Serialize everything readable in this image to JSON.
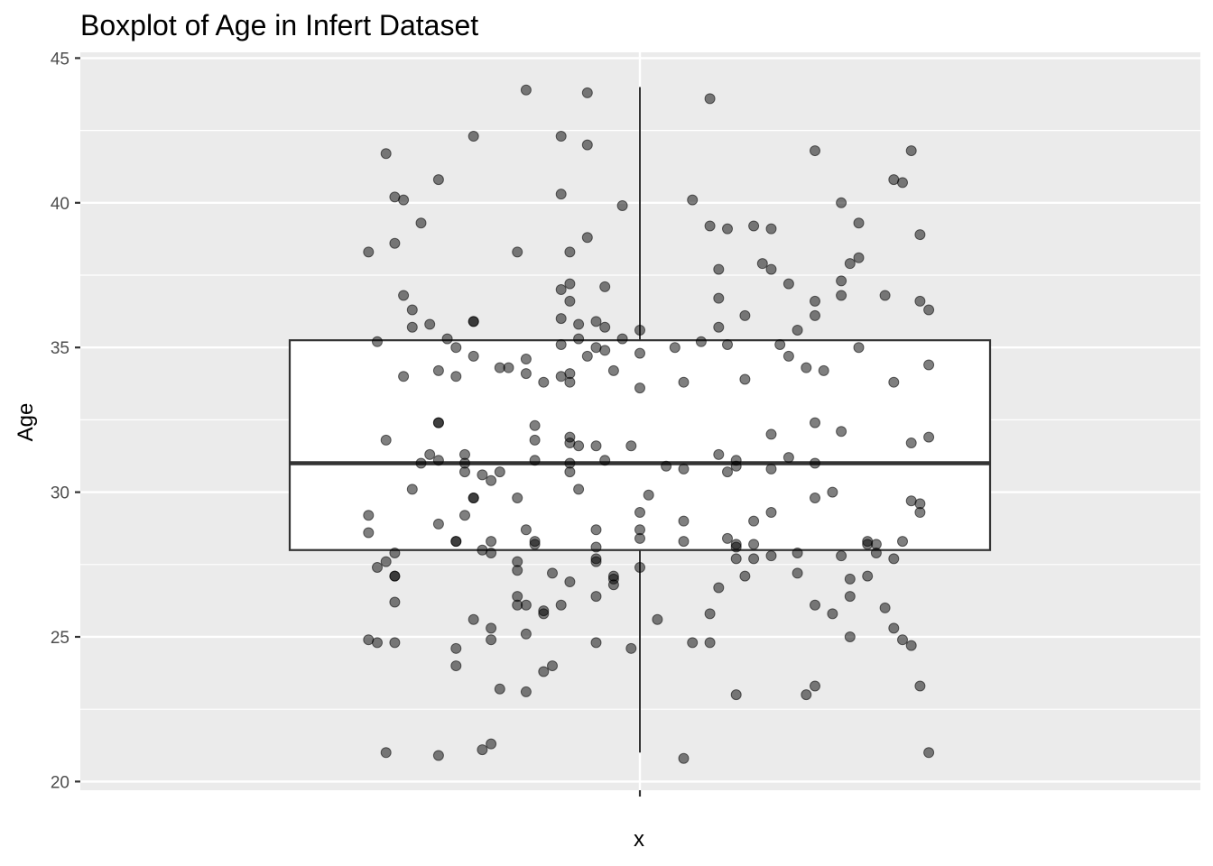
{
  "chart_data": {
    "type": "box",
    "title": "Boxplot of Age in Infert Dataset",
    "xlabel": "x",
    "ylabel": "Age",
    "categories": [
      ""
    ],
    "ylim": [
      19.7,
      45.2
    ],
    "yticks": [
      20,
      25,
      30,
      35,
      40,
      45
    ],
    "grid": true,
    "box": {
      "min": 21,
      "q1": 28,
      "median": 31,
      "q3": 35.25,
      "max": 44
    },
    "points": [
      {
        "x": -0.31,
        "y": 38.3
      },
      {
        "x": -0.29,
        "y": 41.7
      },
      {
        "x": -0.28,
        "y": 40.2
      },
      {
        "x": -0.27,
        "y": 40.1
      },
      {
        "x": -0.28,
        "y": 38.6
      },
      {
        "x": -0.25,
        "y": 39.3
      },
      {
        "x": -0.23,
        "y": 40.8
      },
      {
        "x": -0.19,
        "y": 42.3
      },
      {
        "x": -0.13,
        "y": 43.9
      },
      {
        "x": -0.09,
        "y": 42.3
      },
      {
        "x": -0.06,
        "y": 43.8
      },
      {
        "x": -0.06,
        "y": 42.0
      },
      {
        "x": -0.09,
        "y": 40.3
      },
      {
        "x": -0.14,
        "y": 38.3
      },
      {
        "x": -0.08,
        "y": 38.3
      },
      {
        "x": -0.06,
        "y": 38.8
      },
      {
        "x": -0.02,
        "y": 39.9
      },
      {
        "x": 0.08,
        "y": 43.6
      },
      {
        "x": 0.06,
        "y": 40.1
      },
      {
        "x": 0.08,
        "y": 39.2
      },
      {
        "x": 0.1,
        "y": 39.1
      },
      {
        "x": 0.13,
        "y": 39.2
      },
      {
        "x": 0.15,
        "y": 39.1
      },
      {
        "x": 0.2,
        "y": 41.8
      },
      {
        "x": 0.23,
        "y": 40.0
      },
      {
        "x": 0.25,
        "y": 39.3
      },
      {
        "x": 0.31,
        "y": 41.8
      },
      {
        "x": 0.29,
        "y": 40.8
      },
      {
        "x": 0.3,
        "y": 40.7
      },
      {
        "x": 0.32,
        "y": 38.9
      },
      {
        "x": 0.24,
        "y": 37.9
      },
      {
        "x": 0.25,
        "y": 38.1
      },
      {
        "x": 0.23,
        "y": 37.3
      },
      {
        "x": 0.14,
        "y": 37.9
      },
      {
        "x": 0.15,
        "y": 37.7
      },
      {
        "x": 0.17,
        "y": 37.2
      },
      {
        "x": 0.09,
        "y": 37.7
      },
      {
        "x": 0.09,
        "y": 36.7
      },
      {
        "x": 0.23,
        "y": 36.8
      },
      {
        "x": 0.2,
        "y": 36.6
      },
      {
        "x": 0.28,
        "y": 36.8
      },
      {
        "x": 0.32,
        "y": 36.6
      },
      {
        "x": 0.33,
        "y": 36.3
      },
      {
        "x": -0.04,
        "y": 37.1
      },
      {
        "x": -0.09,
        "y": 37.0
      },
      {
        "x": -0.08,
        "y": 37.2
      },
      {
        "x": -0.08,
        "y": 36.6
      },
      {
        "x": -0.27,
        "y": 36.8
      },
      {
        "x": -0.26,
        "y": 36.3
      },
      {
        "x": -0.26,
        "y": 35.7
      },
      {
        "x": -0.24,
        "y": 35.8
      },
      {
        "x": -0.19,
        "y": 35.9
      },
      {
        "x": -0.19,
        "y": 35.9
      },
      {
        "x": -0.09,
        "y": 36.0
      },
      {
        "x": -0.07,
        "y": 35.8
      },
      {
        "x": -0.05,
        "y": 35.9
      },
      {
        "x": -0.04,
        "y": 35.7
      },
      {
        "x": -0.02,
        "y": 35.3
      },
      {
        "x": 0.0,
        "y": 35.6
      },
      {
        "x": 0.09,
        "y": 35.7
      },
      {
        "x": 0.12,
        "y": 36.1
      },
      {
        "x": 0.18,
        "y": 35.6
      },
      {
        "x": 0.2,
        "y": 36.1
      },
      {
        "x": 0.07,
        "y": 35.2
      },
      {
        "x": 0.1,
        "y": 35.1
      },
      {
        "x": 0.16,
        "y": 35.1
      },
      {
        "x": -0.07,
        "y": 35.3
      },
      {
        "x": -0.09,
        "y": 35.1
      },
      {
        "x": -0.05,
        "y": 35.0
      },
      {
        "x": -0.06,
        "y": 34.7
      },
      {
        "x": -0.04,
        "y": 34.9
      },
      {
        "x": -0.22,
        "y": 35.3
      },
      {
        "x": -0.21,
        "y": 35.0
      },
      {
        "x": -0.19,
        "y": 34.7
      },
      {
        "x": -0.3,
        "y": 35.2
      },
      {
        "x": -0.13,
        "y": 34.6
      },
      {
        "x": -0.16,
        "y": 34.3
      },
      {
        "x": -0.15,
        "y": 34.3
      },
      {
        "x": -0.23,
        "y": 34.2
      },
      {
        "x": -0.27,
        "y": 34.0
      },
      {
        "x": -0.21,
        "y": 34.0
      },
      {
        "x": -0.13,
        "y": 34.1
      },
      {
        "x": -0.11,
        "y": 33.8
      },
      {
        "x": -0.09,
        "y": 34.0
      },
      {
        "x": -0.08,
        "y": 34.1
      },
      {
        "x": -0.08,
        "y": 33.8
      },
      {
        "x": -0.03,
        "y": 34.2
      },
      {
        "x": 0.0,
        "y": 34.8
      },
      {
        "x": 0.04,
        "y": 35.0
      },
      {
        "x": 0.0,
        "y": 33.6
      },
      {
        "x": 0.05,
        "y": 33.8
      },
      {
        "x": 0.12,
        "y": 33.9
      },
      {
        "x": 0.17,
        "y": 34.7
      },
      {
        "x": 0.19,
        "y": 34.3
      },
      {
        "x": 0.21,
        "y": 34.2
      },
      {
        "x": 0.25,
        "y": 35.0
      },
      {
        "x": 0.29,
        "y": 33.8
      },
      {
        "x": 0.33,
        "y": 34.4
      },
      {
        "x": -0.23,
        "y": 32.4
      },
      {
        "x": -0.23,
        "y": 32.4
      },
      {
        "x": -0.12,
        "y": 32.3
      },
      {
        "x": -0.08,
        "y": 31.9
      },
      {
        "x": -0.12,
        "y": 31.8
      },
      {
        "x": -0.08,
        "y": 31.7
      },
      {
        "x": -0.07,
        "y": 31.6
      },
      {
        "x": -0.05,
        "y": 31.6
      },
      {
        "x": -0.01,
        "y": 31.6
      },
      {
        "x": -0.29,
        "y": 31.8
      },
      {
        "x": -0.25,
        "y": 31.0
      },
      {
        "x": -0.24,
        "y": 31.3
      },
      {
        "x": -0.23,
        "y": 31.1
      },
      {
        "x": -0.2,
        "y": 31.3
      },
      {
        "x": -0.2,
        "y": 31.0
      },
      {
        "x": -0.2,
        "y": 30.7
      },
      {
        "x": -0.18,
        "y": 30.6
      },
      {
        "x": -0.17,
        "y": 30.4
      },
      {
        "x": -0.16,
        "y": 30.7
      },
      {
        "x": -0.12,
        "y": 31.1
      },
      {
        "x": -0.08,
        "y": 31.0
      },
      {
        "x": -0.08,
        "y": 30.7
      },
      {
        "x": -0.04,
        "y": 31.1
      },
      {
        "x": 0.03,
        "y": 30.9
      },
      {
        "x": 0.05,
        "y": 30.8
      },
      {
        "x": 0.09,
        "y": 31.3
      },
      {
        "x": 0.11,
        "y": 31.1
      },
      {
        "x": 0.11,
        "y": 30.9
      },
      {
        "x": 0.1,
        "y": 30.7
      },
      {
        "x": 0.15,
        "y": 32.0
      },
      {
        "x": 0.15,
        "y": 30.8
      },
      {
        "x": 0.17,
        "y": 31.2
      },
      {
        "x": 0.2,
        "y": 31.0
      },
      {
        "x": 0.2,
        "y": 32.4
      },
      {
        "x": 0.23,
        "y": 32.1
      },
      {
        "x": 0.31,
        "y": 31.7
      },
      {
        "x": 0.33,
        "y": 31.9
      },
      {
        "x": -0.26,
        "y": 30.1
      },
      {
        "x": -0.19,
        "y": 29.8
      },
      {
        "x": -0.19,
        "y": 29.8
      },
      {
        "x": -0.14,
        "y": 29.8
      },
      {
        "x": -0.07,
        "y": 30.1
      },
      {
        "x": 0.01,
        "y": 29.9
      },
      {
        "x": -0.31,
        "y": 29.2
      },
      {
        "x": -0.2,
        "y": 29.2
      },
      {
        "x": -0.23,
        "y": 28.9
      },
      {
        "x": -0.31,
        "y": 28.6
      },
      {
        "x": -0.21,
        "y": 28.3
      },
      {
        "x": -0.21,
        "y": 28.3
      },
      {
        "x": -0.17,
        "y": 28.3
      },
      {
        "x": -0.12,
        "y": 28.2
      },
      {
        "x": -0.12,
        "y": 28.3
      },
      {
        "x": -0.13,
        "y": 28.7
      },
      {
        "x": -0.05,
        "y": 28.7
      },
      {
        "x": 0.0,
        "y": 28.7
      },
      {
        "x": 0.0,
        "y": 28.4
      },
      {
        "x": 0.0,
        "y": 29.3
      },
      {
        "x": 0.05,
        "y": 29.0
      },
      {
        "x": 0.05,
        "y": 28.3
      },
      {
        "x": 0.1,
        "y": 28.4
      },
      {
        "x": 0.11,
        "y": 28.1
      },
      {
        "x": 0.11,
        "y": 28.2
      },
      {
        "x": 0.13,
        "y": 28.2
      },
      {
        "x": 0.13,
        "y": 29.0
      },
      {
        "x": 0.15,
        "y": 29.3
      },
      {
        "x": 0.2,
        "y": 29.8
      },
      {
        "x": 0.22,
        "y": 30.0
      },
      {
        "x": 0.26,
        "y": 28.3
      },
      {
        "x": 0.26,
        "y": 28.2
      },
      {
        "x": 0.27,
        "y": 28.2
      },
      {
        "x": 0.27,
        "y": 27.9
      },
      {
        "x": 0.3,
        "y": 28.3
      },
      {
        "x": 0.31,
        "y": 29.7
      },
      {
        "x": 0.32,
        "y": 29.6
      },
      {
        "x": 0.32,
        "y": 29.3
      },
      {
        "x": -0.28,
        "y": 27.9
      },
      {
        "x": -0.3,
        "y": 27.4
      },
      {
        "x": -0.29,
        "y": 27.6
      },
      {
        "x": -0.28,
        "y": 27.1
      },
      {
        "x": -0.28,
        "y": 27.1
      },
      {
        "x": -0.18,
        "y": 28.0
      },
      {
        "x": -0.17,
        "y": 27.9
      },
      {
        "x": -0.14,
        "y": 27.6
      },
      {
        "x": -0.14,
        "y": 27.3
      },
      {
        "x": -0.1,
        "y": 27.2
      },
      {
        "x": -0.08,
        "y": 26.9
      },
      {
        "x": -0.05,
        "y": 28.1
      },
      {
        "x": -0.05,
        "y": 27.7
      },
      {
        "x": -0.05,
        "y": 27.6
      },
      {
        "x": -0.03,
        "y": 27.1
      },
      {
        "x": -0.03,
        "y": 27.0
      },
      {
        "x": -0.03,
        "y": 26.8
      },
      {
        "x": 0.0,
        "y": 27.4
      },
      {
        "x": 0.11,
        "y": 27.7
      },
      {
        "x": 0.13,
        "y": 27.7
      },
      {
        "x": 0.15,
        "y": 27.8
      },
      {
        "x": 0.18,
        "y": 27.9
      },
      {
        "x": 0.18,
        "y": 27.2
      },
      {
        "x": 0.23,
        "y": 27.8
      },
      {
        "x": 0.24,
        "y": 27.0
      },
      {
        "x": 0.26,
        "y": 27.1
      },
      {
        "x": 0.29,
        "y": 27.7
      },
      {
        "x": 0.12,
        "y": 27.1
      },
      {
        "x": 0.09,
        "y": 26.7
      },
      {
        "x": -0.28,
        "y": 26.2
      },
      {
        "x": -0.14,
        "y": 26.4
      },
      {
        "x": -0.14,
        "y": 26.1
      },
      {
        "x": -0.13,
        "y": 26.1
      },
      {
        "x": -0.11,
        "y": 25.9
      },
      {
        "x": -0.11,
        "y": 25.8
      },
      {
        "x": -0.09,
        "y": 26.1
      },
      {
        "x": -0.05,
        "y": 26.4
      },
      {
        "x": -0.19,
        "y": 25.6
      },
      {
        "x": -0.17,
        "y": 25.3
      },
      {
        "x": -0.13,
        "y": 25.1
      },
      {
        "x": -0.17,
        "y": 24.9
      },
      {
        "x": 0.02,
        "y": 25.6
      },
      {
        "x": 0.08,
        "y": 25.8
      },
      {
        "x": 0.2,
        "y": 26.1
      },
      {
        "x": 0.22,
        "y": 25.8
      },
      {
        "x": 0.24,
        "y": 26.4
      },
      {
        "x": 0.28,
        "y": 26.0
      },
      {
        "x": 0.24,
        "y": 25.0
      },
      {
        "x": 0.29,
        "y": 25.3
      },
      {
        "x": 0.3,
        "y": 24.9
      },
      {
        "x": 0.31,
        "y": 24.7
      },
      {
        "x": -0.31,
        "y": 24.9
      },
      {
        "x": -0.3,
        "y": 24.8
      },
      {
        "x": -0.28,
        "y": 24.8
      },
      {
        "x": -0.21,
        "y": 24.6
      },
      {
        "x": -0.21,
        "y": 24.0
      },
      {
        "x": -0.1,
        "y": 24.0
      },
      {
        "x": -0.11,
        "y": 23.8
      },
      {
        "x": -0.05,
        "y": 24.8
      },
      {
        "x": -0.01,
        "y": 24.6
      },
      {
        "x": 0.06,
        "y": 24.8
      },
      {
        "x": 0.08,
        "y": 24.8
      },
      {
        "x": -0.16,
        "y": 23.2
      },
      {
        "x": -0.13,
        "y": 23.1
      },
      {
        "x": 0.11,
        "y": 23.0
      },
      {
        "x": 0.19,
        "y": 23.0
      },
      {
        "x": 0.2,
        "y": 23.3
      },
      {
        "x": 0.32,
        "y": 23.3
      },
      {
        "x": -0.29,
        "y": 21.0
      },
      {
        "x": -0.23,
        "y": 20.9
      },
      {
        "x": -0.18,
        "y": 21.1
      },
      {
        "x": -0.17,
        "y": 21.3
      },
      {
        "x": 0.05,
        "y": 20.8
      },
      {
        "x": 0.33,
        "y": 21.0
      }
    ]
  },
  "colors": {
    "panel_bg": "#EBEBEB",
    "grid": "#FFFFFF",
    "box_fill": "#FFFFFF",
    "box_stroke": "#333333",
    "point": "#000000",
    "tick_text": "#4D4D4D"
  }
}
